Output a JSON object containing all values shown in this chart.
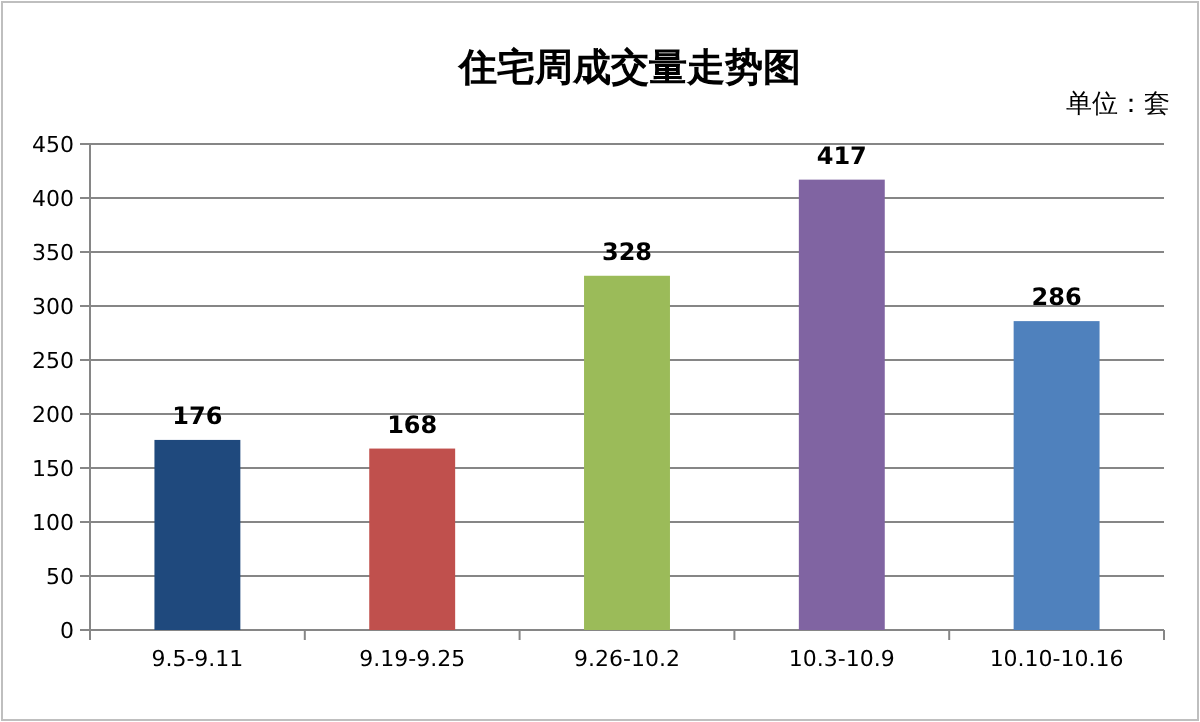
{
  "chart_data": {
    "type": "bar",
    "title": "住宅周成交量走势图",
    "annotations": [
      "单位：套"
    ],
    "categories": [
      "9.5-9.11",
      "9.19-9.25",
      "9.26-10.2",
      "10.3-10.9",
      "10.10-10.16"
    ],
    "values": [
      176,
      168,
      328,
      417,
      286
    ],
    "colors": [
      "#1f497d",
      "#c0504d",
      "#9bbb59",
      "#8064a2",
      "#4f81bd"
    ],
    "ylim": [
      0,
      450
    ],
    "yticks": [
      0,
      50,
      100,
      150,
      200,
      250,
      300,
      350,
      400,
      450
    ],
    "grid": "y",
    "data_labels": true
  }
}
